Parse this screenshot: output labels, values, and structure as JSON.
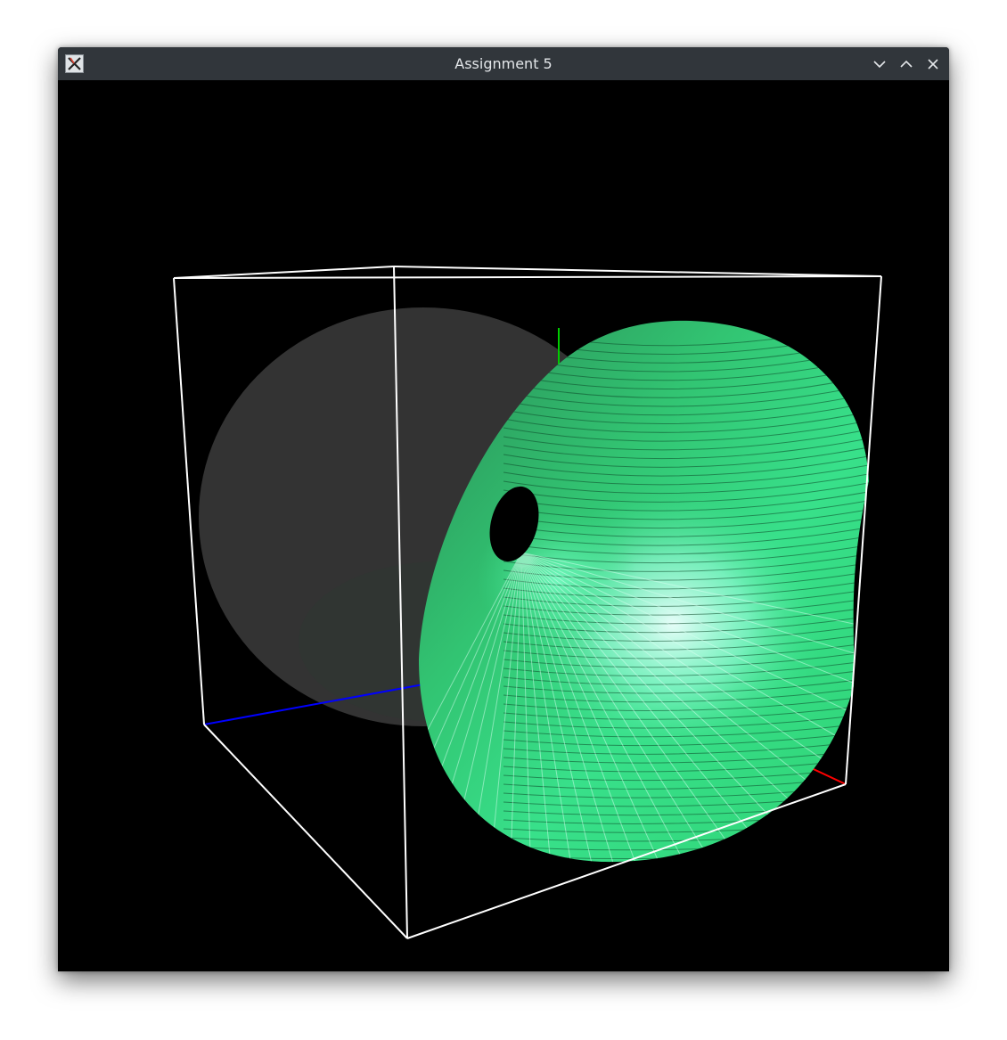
{
  "window": {
    "title": "Assignment 5",
    "icon": "x-window-system-icon"
  },
  "titlebar_buttons": [
    {
      "name": "minimize-button",
      "icon": "chevron-down-icon"
    },
    {
      "name": "maximize-button",
      "icon": "chevron-up-icon"
    },
    {
      "name": "close-button",
      "icon": "close-icon"
    }
  ],
  "scene": {
    "background": "#000000",
    "box_color": "#ffffff",
    "axis_colors": {
      "x": "#ff0000",
      "y": "#00cc00",
      "z": "#0000ff"
    },
    "surface_back_color": "#333333",
    "surface_front_color": "#2fd375",
    "highlight_color": "#c8ffff"
  }
}
